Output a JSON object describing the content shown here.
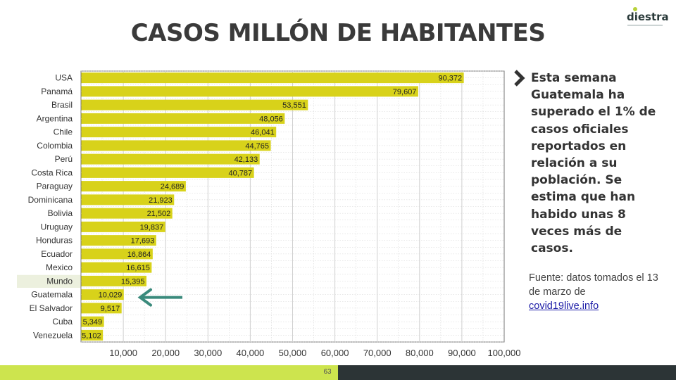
{
  "title": "CASOS MILLÓN DE HABITANTES",
  "logo": {
    "text": "diestra"
  },
  "side_text": "Esta semana Guatemala ha superado el 1% de casos oficiales reportados en relación a su población. Se estima que han habido unas 8 veces más de casos.",
  "source": {
    "text": "Fuente: datos tomados el 13 de marzo de",
    "link": "covid19live.info"
  },
  "page_number": "63",
  "colors": {
    "bar": "#d8d21a",
    "highlight": "#ecf0de",
    "arrow": "#3a8a7c",
    "footer_left": "#cde44e",
    "footer_right": "#2c3436"
  },
  "chart_data": {
    "type": "bar",
    "orientation": "horizontal",
    "categories": [
      "USA",
      "Panamá",
      "Brasil",
      "Argentina",
      "Chile",
      "Colombia",
      "Perú",
      "Costa Rica",
      "Paraguay",
      "Dominicana",
      "Bolivia",
      "Uruguay",
      "Honduras",
      "Ecuador",
      "Mexico",
      "Mundo",
      "Guatemala",
      "El Salvador",
      "Cuba",
      "Venezuela"
    ],
    "values": [
      90372,
      79607,
      53551,
      48056,
      46041,
      44765,
      42133,
      40787,
      24689,
      21923,
      21502,
      19837,
      17693,
      16864,
      16615,
      15395,
      10029,
      9517,
      5349,
      5102
    ],
    "value_labels": [
      "90,372",
      "79,607",
      "53,551",
      "48,056",
      "46,041",
      "44,765",
      "42,133",
      "40,787",
      "24,689",
      "21,923",
      "21,502",
      "19,837",
      "17,693",
      "16,864",
      "16,615",
      "15,395",
      "10,029",
      "9,517",
      "5,349",
      "5,102"
    ],
    "xticks": [
      10000,
      20000,
      30000,
      40000,
      50000,
      60000,
      70000,
      80000,
      90000,
      100000
    ],
    "xtick_labels": [
      "10,000",
      "20,000",
      "30,000",
      "40,000",
      "50,000",
      "60,000",
      "70,000",
      "80,000",
      "90,000",
      "100,000"
    ],
    "xlim": [
      0,
      100000
    ],
    "grid": true,
    "highlighted_category": "Mundo",
    "arrow_points_to": "Guatemala"
  }
}
